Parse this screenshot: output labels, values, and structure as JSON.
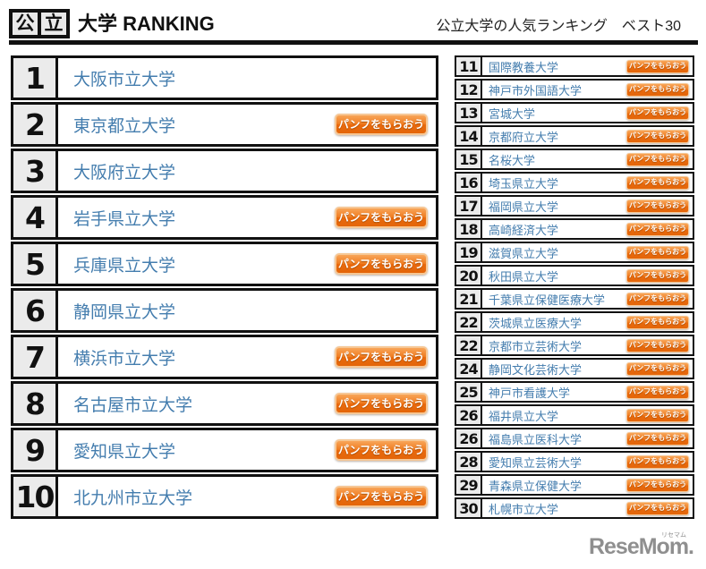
{
  "header": {
    "badge_chars": [
      "公",
      "立"
    ],
    "title_left": "大学 RANKING",
    "title_right": "公立大学の人気ランキング　ベスト30"
  },
  "button_label": "パンフをもらおう",
  "left_ranking": [
    {
      "rank": "1",
      "name": "大阪市立大学",
      "has_button": false
    },
    {
      "rank": "2",
      "name": "東京都立大学",
      "has_button": true
    },
    {
      "rank": "3",
      "name": "大阪府立大学",
      "has_button": false
    },
    {
      "rank": "4",
      "name": "岩手県立大学",
      "has_button": true
    },
    {
      "rank": "5",
      "name": "兵庫県立大学",
      "has_button": true
    },
    {
      "rank": "6",
      "name": "静岡県立大学",
      "has_button": false
    },
    {
      "rank": "7",
      "name": "横浜市立大学",
      "has_button": true
    },
    {
      "rank": "8",
      "name": "名古屋市立大学",
      "has_button": true
    },
    {
      "rank": "9",
      "name": "愛知県立大学",
      "has_button": true
    },
    {
      "rank": "10",
      "name": "北九州市立大学",
      "has_button": true
    }
  ],
  "right_ranking": [
    {
      "rank": "11",
      "name": "国際教養大学",
      "has_button": true
    },
    {
      "rank": "12",
      "name": "神戸市外国語大学",
      "has_button": true
    },
    {
      "rank": "13",
      "name": "宮城大学",
      "has_button": true
    },
    {
      "rank": "14",
      "name": "京都府立大学",
      "has_button": true
    },
    {
      "rank": "15",
      "name": "名桜大学",
      "has_button": true
    },
    {
      "rank": "16",
      "name": "埼玉県立大学",
      "has_button": true
    },
    {
      "rank": "17",
      "name": "福岡県立大学",
      "has_button": true
    },
    {
      "rank": "18",
      "name": "高崎経済大学",
      "has_button": true
    },
    {
      "rank": "19",
      "name": "滋賀県立大学",
      "has_button": true
    },
    {
      "rank": "20",
      "name": "秋田県立大学",
      "has_button": true
    },
    {
      "rank": "21",
      "name": "千葉県立保健医療大学",
      "has_button": true
    },
    {
      "rank": "22",
      "name": "茨城県立医療大学",
      "has_button": true
    },
    {
      "rank": "22",
      "name": "京都市立芸術大学",
      "has_button": true
    },
    {
      "rank": "24",
      "name": "静岡文化芸術大学",
      "has_button": true
    },
    {
      "rank": "25",
      "name": "神戸市看護大学",
      "has_button": true
    },
    {
      "rank": "26",
      "name": "福井県立大学",
      "has_button": true
    },
    {
      "rank": "26",
      "name": "福島県立医科大学",
      "has_button": true
    },
    {
      "rank": "28",
      "name": "愛知県立芸術大学",
      "has_button": true
    },
    {
      "rank": "29",
      "name": "青森県立保健大学",
      "has_button": true
    },
    {
      "rank": "30",
      "name": "札幌市立大学",
      "has_button": true
    }
  ],
  "footer": {
    "logo_text": "ReseMom.",
    "logo_ruby": "リセマム"
  },
  "colors": {
    "accent_orange": "#ef7d22",
    "link_blue": "#447dae",
    "border_black": "#111111",
    "rank_cell_gray": "#ebebeb",
    "logo_gray": "#8f8f8f"
  }
}
